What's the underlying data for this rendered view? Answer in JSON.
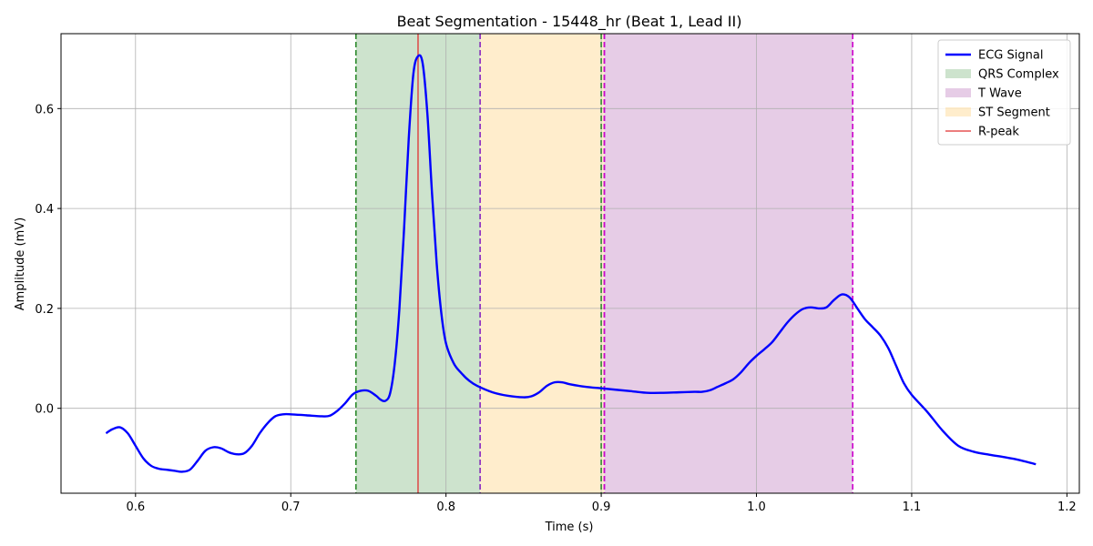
{
  "chart_data": {
    "type": "line",
    "title": "Beat Segmentation - 15448_hr (Beat 1, Lead II)",
    "xlabel": "Time (s)",
    "ylabel": "Amplitude (mV)",
    "xlim": [
      0.552,
      1.208
    ],
    "ylim": [
      -0.17,
      0.75
    ],
    "xticks": [
      0.6,
      0.7,
      0.8,
      0.9,
      1.0,
      1.1,
      1.2
    ],
    "xtick_labels": [
      "0.6",
      "0.7",
      "0.8",
      "0.9",
      "1.0",
      "1.1",
      "1.2"
    ],
    "yticks": [
      0.0,
      0.2,
      0.4,
      0.6
    ],
    "ytick_labels": [
      "0.0",
      "0.2",
      "0.4",
      "0.6"
    ],
    "grid": true,
    "legend_position": "top-right",
    "series": [
      {
        "name": "ECG Signal",
        "color": "#0000ff",
        "x": [
          0.581,
          0.585,
          0.59,
          0.595,
          0.6,
          0.605,
          0.61,
          0.615,
          0.62,
          0.625,
          0.63,
          0.635,
          0.64,
          0.645,
          0.65,
          0.655,
          0.66,
          0.665,
          0.67,
          0.675,
          0.68,
          0.685,
          0.69,
          0.695,
          0.7,
          0.71,
          0.72,
          0.725,
          0.73,
          0.735,
          0.74,
          0.745,
          0.75,
          0.755,
          0.758,
          0.761,
          0.764,
          0.767,
          0.77,
          0.773,
          0.776,
          0.779,
          0.782,
          0.785,
          0.788,
          0.791,
          0.794,
          0.797,
          0.8,
          0.805,
          0.81,
          0.815,
          0.82,
          0.83,
          0.84,
          0.85,
          0.855,
          0.86,
          0.865,
          0.87,
          0.875,
          0.88,
          0.89,
          0.9,
          0.91,
          0.92,
          0.93,
          0.94,
          0.95,
          0.96,
          0.965,
          0.97,
          0.975,
          0.98,
          0.985,
          0.99,
          0.995,
          1.0,
          1.005,
          1.01,
          1.015,
          1.02,
          1.025,
          1.03,
          1.035,
          1.04,
          1.045,
          1.05,
          1.055,
          1.06,
          1.065,
          1.07,
          1.075,
          1.08,
          1.085,
          1.09,
          1.095,
          1.1,
          1.11,
          1.12,
          1.13,
          1.14,
          1.15,
          1.16,
          1.17,
          1.18
        ],
        "y": [
          -0.05,
          -0.042,
          -0.038,
          -0.05,
          -0.075,
          -0.1,
          -0.115,
          -0.121,
          -0.123,
          -0.125,
          -0.127,
          -0.123,
          -0.105,
          -0.085,
          -0.078,
          -0.08,
          -0.088,
          -0.092,
          -0.09,
          -0.075,
          -0.05,
          -0.03,
          -0.016,
          -0.012,
          -0.012,
          -0.014,
          -0.016,
          -0.015,
          -0.005,
          0.01,
          0.028,
          0.035,
          0.035,
          0.025,
          0.017,
          0.015,
          0.03,
          0.09,
          0.2,
          0.36,
          0.54,
          0.67,
          0.705,
          0.69,
          0.59,
          0.43,
          0.29,
          0.19,
          0.13,
          0.09,
          0.07,
          0.055,
          0.045,
          0.032,
          0.025,
          0.022,
          0.024,
          0.032,
          0.045,
          0.052,
          0.052,
          0.048,
          0.043,
          0.04,
          0.037,
          0.034,
          0.031,
          0.031,
          0.032,
          0.033,
          0.033,
          0.036,
          0.043,
          0.05,
          0.058,
          0.072,
          0.09,
          0.105,
          0.118,
          0.132,
          0.152,
          0.172,
          0.188,
          0.199,
          0.202,
          0.2,
          0.202,
          0.217,
          0.228,
          0.222,
          0.2,
          0.178,
          0.162,
          0.145,
          0.12,
          0.085,
          0.05,
          0.027,
          -0.007,
          -0.045,
          -0.075,
          -0.087,
          -0.093,
          -0.098,
          -0.104,
          -0.112
        ]
      }
    ],
    "regions": [
      {
        "name": "QRS Complex",
        "start": 0.742,
        "end": 0.822,
        "fill": "#2e8b2e",
        "opacity": 0.24,
        "edge_color": "#2e8b2e"
      },
      {
        "name": "ST Segment",
        "start": 0.822,
        "end": 0.902,
        "fill": "#ffa500",
        "opacity": 0.2,
        "edge_color": "#9932cc"
      },
      {
        "name": "T Wave",
        "start": 0.902,
        "end": 1.062,
        "fill": "#800080",
        "opacity": 0.2,
        "edge_color": "#cc00cc"
      }
    ],
    "extra_vlines": [
      {
        "x": 0.9,
        "color": "#2e8b2e"
      }
    ],
    "r_peak": {
      "name": "R-peak",
      "x": 0.782,
      "color": "#e03030"
    },
    "legend": [
      {
        "label": "ECG Signal",
        "kind": "line",
        "color": "#0000ff"
      },
      {
        "label": "QRS Complex",
        "kind": "patch",
        "color": "#2e8b2e",
        "opacity": 0.24
      },
      {
        "label": "T Wave",
        "kind": "patch",
        "color": "#800080",
        "opacity": 0.2
      },
      {
        "label": "ST Segment",
        "kind": "patch",
        "color": "#ffa500",
        "opacity": 0.2
      },
      {
        "label": "R-peak",
        "kind": "thinline",
        "color": "#e03030"
      }
    ]
  }
}
